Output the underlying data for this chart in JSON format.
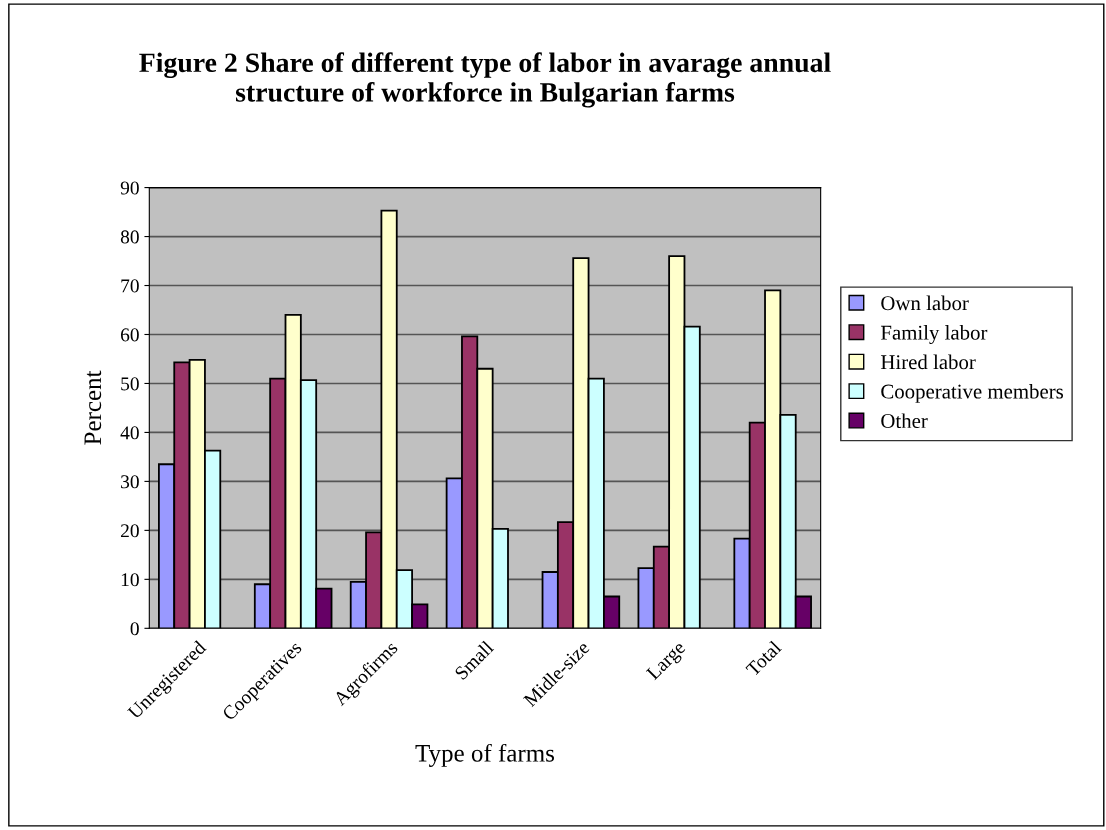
{
  "chart_data": {
    "type": "bar",
    "title": "Figure 2 Share of different type of labor in avarage annual\nstructure of workforce in Bulgarian farms",
    "xlabel": "Type of farms",
    "ylabel": "Percent",
    "categories": [
      "Unregistered",
      "Cooperatives",
      "Agrofirms",
      "Small",
      "Midle-size",
      "Large",
      "Total"
    ],
    "series": [
      {
        "name": "Own labor",
        "color": "#9999ff",
        "values": [
          33.5,
          9.0,
          9.5,
          30.6,
          11.5,
          12.3,
          18.3
        ]
      },
      {
        "name": "Family labor",
        "color": "#993366",
        "values": [
          54.3,
          51.0,
          19.6,
          59.6,
          21.7,
          16.7,
          42.0
        ]
      },
      {
        "name": "Hired labor",
        "color": "#ffffcc",
        "values": [
          54.8,
          64.0,
          85.3,
          53.0,
          75.6,
          76.0,
          69.0
        ]
      },
      {
        "name": "Cooperative members",
        "color": "#ccffff",
        "values": [
          36.3,
          50.7,
          11.9,
          20.3,
          51.0,
          61.6,
          43.6
        ]
      },
      {
        "name": "Other",
        "color": "#660066",
        "values": [
          null,
          8.1,
          4.9,
          null,
          6.5,
          null,
          6.5
        ]
      }
    ],
    "ylim": [
      0,
      90
    ],
    "yticks": [
      0,
      10,
      20,
      30,
      40,
      50,
      60,
      70,
      80,
      90
    ],
    "grid": "y",
    "legend": "right"
  }
}
